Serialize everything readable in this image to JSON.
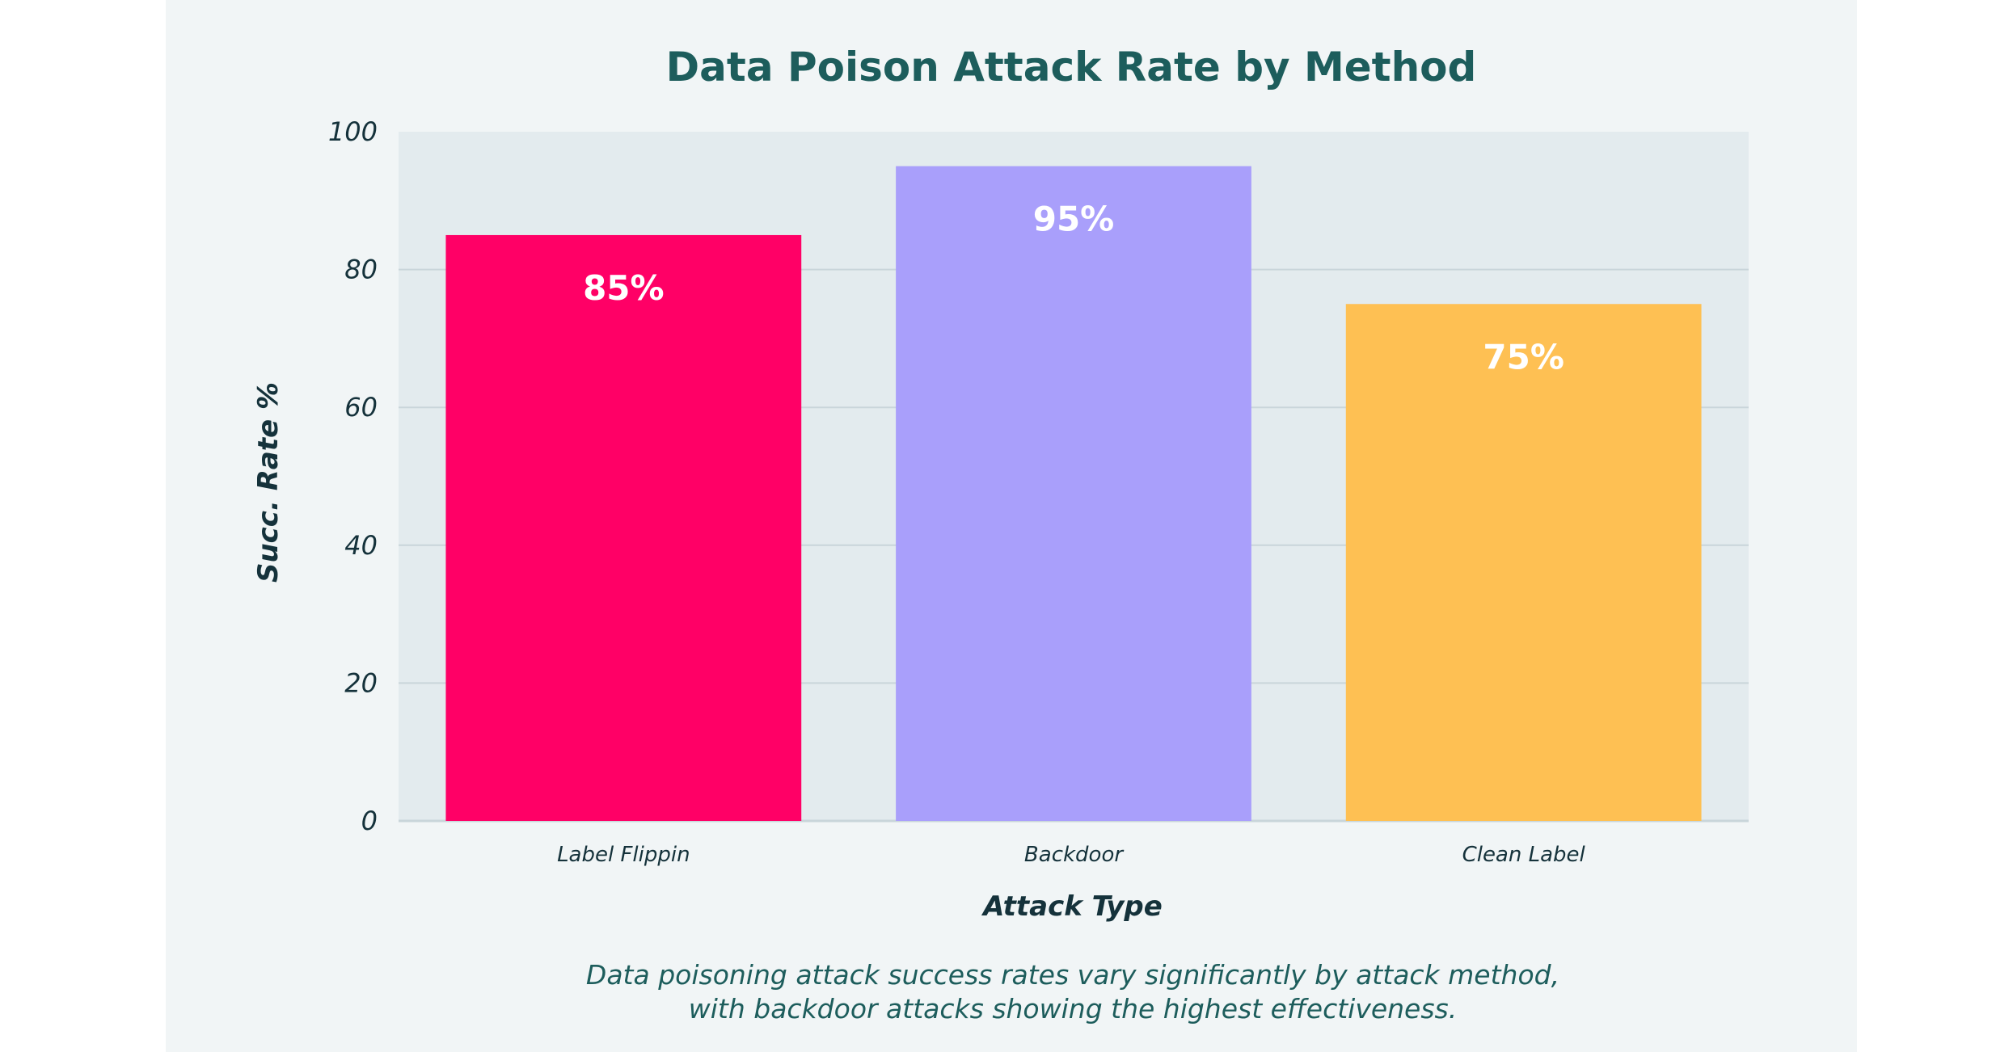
{
  "chart_data": {
    "type": "bar",
    "title": "Data Poison Attack Rate by Method",
    "xlabel": "Attack Type",
    "ylabel": "Succ. Rate %",
    "categories": [
      "Label Flippin",
      "Backdoor",
      "Clean Label"
    ],
    "values": [
      85,
      95,
      75
    ],
    "data_labels": [
      "85%",
      "95%",
      "75%"
    ],
    "colors": [
      "#ff0066",
      "#a99ffb",
      "#fec053"
    ],
    "ylim": [
      0,
      100
    ],
    "yticks": [
      0,
      20,
      40,
      60,
      80,
      100
    ],
    "grid": true,
    "legend": "none"
  },
  "caption": {
    "line1": "Data poisoning attack success rates vary significantly by attack method,",
    "line2": "with backdoor attacks showing the highest effectiveness."
  },
  "colors": {
    "background": "#f1f5f6",
    "plot_area": "#e3ebee",
    "grid": "#c9d5da",
    "title": "#1d5d5c",
    "text": "#15323b"
  }
}
